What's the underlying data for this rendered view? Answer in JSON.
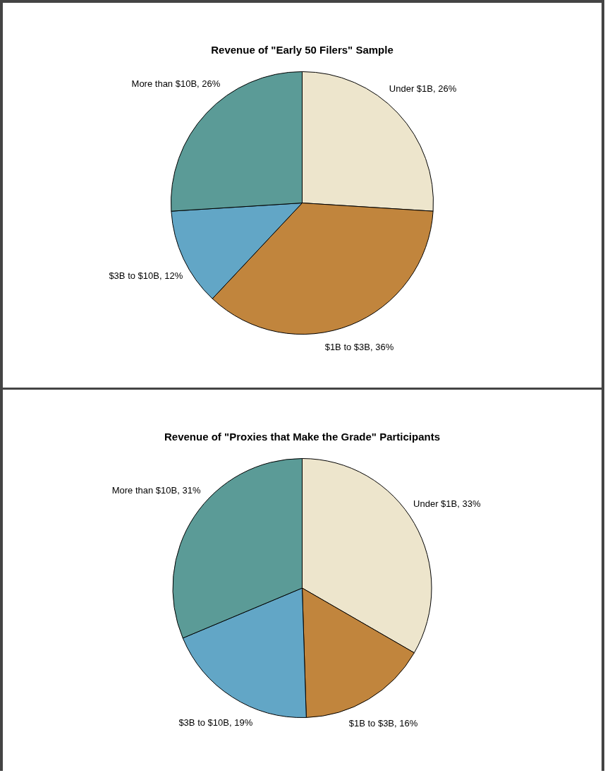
{
  "chart_data": [
    {
      "type": "pie",
      "title": "Revenue of \"Early 50 Filers\" Sample",
      "categories": [
        "Under $1B",
        "$1B to $3B",
        "$3B to $10B",
        "More than $10B"
      ],
      "values": [
        26,
        36,
        12,
        26
      ],
      "value_labels": [
        "26%",
        "36%",
        "12%",
        "26%"
      ],
      "colors": [
        "#ede5cc",
        "#c1853d",
        "#62a6c6",
        "#5b9b97"
      ],
      "legend": false
    },
    {
      "type": "pie",
      "title": "Revenue of \"Proxies that Make the Grade\" Participants",
      "categories": [
        "Under $1B",
        "$1B to $3B",
        "$3B to $10B",
        "More than $10B"
      ],
      "values": [
        33,
        16,
        19,
        31
      ],
      "value_labels": [
        "33%",
        "16%",
        "19%",
        "31%"
      ],
      "colors": [
        "#ede5cc",
        "#c1853d",
        "#62a6c6",
        "#5b9b97"
      ],
      "legend": false
    }
  ]
}
